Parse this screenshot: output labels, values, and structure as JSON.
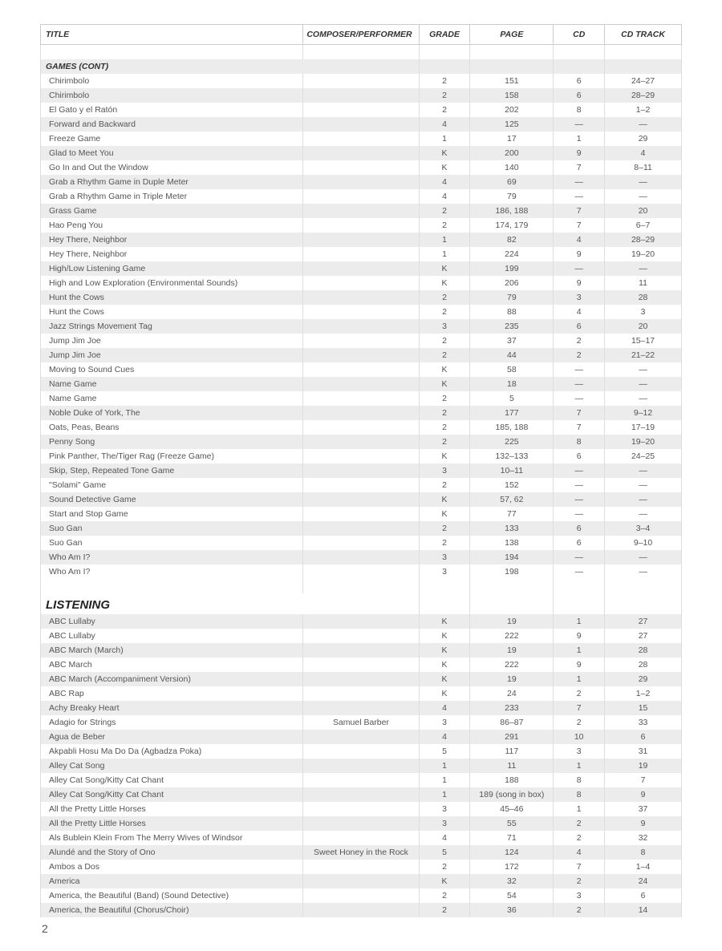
{
  "headers": {
    "title": "TITLE",
    "composer": "COMPOSER/PERFORMER",
    "grade": "GRADE",
    "page": "PAGE",
    "cd": "CD",
    "track": "CD TRACK"
  },
  "pageNumber": "2",
  "rows": [
    {
      "type": "blank"
    },
    {
      "type": "section",
      "label": "GAMES (CONT)",
      "zebra": true
    },
    {
      "type": "data",
      "title": "Chirimbolo",
      "composer": "",
      "grade": "2",
      "page": "151",
      "cd": "6",
      "track": "24–27"
    },
    {
      "type": "data",
      "title": "Chirimbolo",
      "composer": "",
      "grade": "2",
      "page": "158",
      "cd": "6",
      "track": "28–29",
      "zebra": true
    },
    {
      "type": "data",
      "title": "El Gato y el Ratón",
      "composer": "",
      "grade": "2",
      "page": "202",
      "cd": "8",
      "track": "1–2"
    },
    {
      "type": "data",
      "title": "Forward and Backward",
      "composer": "",
      "grade": "4",
      "page": "125",
      "cd": "—",
      "track": "—",
      "zebra": true
    },
    {
      "type": "data",
      "title": "Freeze Game",
      "composer": "",
      "grade": "1",
      "page": "17",
      "cd": "1",
      "track": "29"
    },
    {
      "type": "data",
      "title": "Glad to Meet You",
      "composer": "",
      "grade": "K",
      "page": "200",
      "cd": "9",
      "track": "4",
      "zebra": true
    },
    {
      "type": "data",
      "title": "Go In and Out the Window",
      "composer": "",
      "grade": "K",
      "page": "140",
      "cd": "7",
      "track": "8–11"
    },
    {
      "type": "data",
      "title": "Grab a Rhythm Game in Duple Meter",
      "composer": "",
      "grade": "4",
      "page": "69",
      "cd": "—",
      "track": "—",
      "zebra": true
    },
    {
      "type": "data",
      "title": "Grab a Rhythm Game in Triple Meter",
      "composer": "",
      "grade": "4",
      "page": "79",
      "cd": "—",
      "track": "—"
    },
    {
      "type": "data",
      "title": "Grass Game",
      "composer": "",
      "grade": "2",
      "page": "186, 188",
      "cd": "7",
      "track": "20",
      "zebra": true
    },
    {
      "type": "data",
      "title": "Hao Peng You",
      "composer": "",
      "grade": "2",
      "page": "174, 179",
      "cd": "7",
      "track": "6–7"
    },
    {
      "type": "data",
      "title": "Hey There, Neighbor",
      "composer": "",
      "grade": "1",
      "page": "82",
      "cd": "4",
      "track": "28–29",
      "zebra": true
    },
    {
      "type": "data",
      "title": "Hey There, Neighbor",
      "composer": "",
      "grade": "1",
      "page": "224",
      "cd": "9",
      "track": "19–20"
    },
    {
      "type": "data",
      "title": "High/Low Listening Game",
      "composer": "",
      "grade": "K",
      "page": "199",
      "cd": "—",
      "track": "—",
      "zebra": true
    },
    {
      "type": "data",
      "title": "High and Low Exploration (Environmental Sounds)",
      "composer": "",
      "grade": "K",
      "page": "206",
      "cd": "9",
      "track": "11"
    },
    {
      "type": "data",
      "title": "Hunt the Cows",
      "composer": "",
      "grade": "2",
      "page": "79",
      "cd": "3",
      "track": "28",
      "zebra": true
    },
    {
      "type": "data",
      "title": "Hunt the Cows",
      "composer": "",
      "grade": "2",
      "page": "88",
      "cd": "4",
      "track": "3"
    },
    {
      "type": "data",
      "title": "Jazz Strings Movement Tag",
      "composer": "",
      "grade": "3",
      "page": "235",
      "cd": "6",
      "track": "20",
      "zebra": true
    },
    {
      "type": "data",
      "title": "Jump Jim Joe",
      "composer": "",
      "grade": "2",
      "page": "37",
      "cd": "2",
      "track": "15–17"
    },
    {
      "type": "data",
      "title": "Jump Jim Joe",
      "composer": "",
      "grade": "2",
      "page": "44",
      "cd": "2",
      "track": "21–22",
      "zebra": true
    },
    {
      "type": "data",
      "title": "Moving to Sound Cues",
      "composer": "",
      "grade": "K",
      "page": "58",
      "cd": "—",
      "track": "—"
    },
    {
      "type": "data",
      "title": "Name Game",
      "composer": "",
      "grade": "K",
      "page": "18",
      "cd": "—",
      "track": "—",
      "zebra": true
    },
    {
      "type": "data",
      "title": "Name Game",
      "composer": "",
      "grade": "2",
      "page": "5",
      "cd": "—",
      "track": "—"
    },
    {
      "type": "data",
      "title": "Noble Duke of York, The",
      "composer": "",
      "grade": "2",
      "page": "177",
      "cd": "7",
      "track": "9–12",
      "zebra": true
    },
    {
      "type": "data",
      "title": "Oats, Peas, Beans",
      "composer": "",
      "grade": "2",
      "page": "185, 188",
      "cd": "7",
      "track": "17–19"
    },
    {
      "type": "data",
      "title": "Penny Song",
      "composer": "",
      "grade": "2",
      "page": "225",
      "cd": "8",
      "track": "19–20",
      "zebra": true
    },
    {
      "type": "data",
      "title": "Pink Panther, The/Tiger Rag (Freeze Game)",
      "composer": "",
      "grade": "K",
      "page": "132–133",
      "cd": "6",
      "track": "24–25"
    },
    {
      "type": "data",
      "title": "Skip, Step, Repeated Tone Game",
      "composer": "",
      "grade": "3",
      "page": "10–11",
      "cd": "—",
      "track": "—",
      "zebra": true
    },
    {
      "type": "data",
      "title": "\"Solami\" Game",
      "composer": "",
      "grade": "2",
      "page": "152",
      "cd": "—",
      "track": "—"
    },
    {
      "type": "data",
      "title": "Sound Detective Game",
      "composer": "",
      "grade": "K",
      "page": "57, 62",
      "cd": "—",
      "track": "—",
      "zebra": true
    },
    {
      "type": "data",
      "title": "Start and Stop Game",
      "composer": "",
      "grade": "K",
      "page": "77",
      "cd": "—",
      "track": "—"
    },
    {
      "type": "data",
      "title": "Suo Gan",
      "composer": "",
      "grade": "2",
      "page": "133",
      "cd": "6",
      "track": "3–4",
      "zebra": true
    },
    {
      "type": "data",
      "title": "Suo Gan",
      "composer": "",
      "grade": "2",
      "page": "138",
      "cd": "6",
      "track": "9–10"
    },
    {
      "type": "data",
      "title": "Who Am I?",
      "composer": "",
      "grade": "3",
      "page": "194",
      "cd": "—",
      "track": "—",
      "zebra": true
    },
    {
      "type": "data",
      "title": "Who Am I?",
      "composer": "",
      "grade": "3",
      "page": "198",
      "cd": "—",
      "track": "—"
    },
    {
      "type": "blank"
    },
    {
      "type": "section-major",
      "label": "LISTENING"
    },
    {
      "type": "data",
      "title": "ABC Lullaby",
      "composer": "",
      "grade": "K",
      "page": "19",
      "cd": "1",
      "track": "27",
      "zebra": true
    },
    {
      "type": "data",
      "title": "ABC Lullaby",
      "composer": "",
      "grade": "K",
      "page": "222",
      "cd": "9",
      "track": "27"
    },
    {
      "type": "data",
      "title": "ABC March (March)",
      "composer": "",
      "grade": "K",
      "page": "19",
      "cd": "1",
      "track": "28",
      "zebra": true
    },
    {
      "type": "data",
      "title": "ABC March",
      "composer": "",
      "grade": "K",
      "page": "222",
      "cd": "9",
      "track": "28"
    },
    {
      "type": "data",
      "title": "ABC March (Accompaniment Version)",
      "composer": "",
      "grade": "K",
      "page": "19",
      "cd": "1",
      "track": "29",
      "zebra": true
    },
    {
      "type": "data",
      "title": "ABC Rap",
      "composer": "",
      "grade": "K",
      "page": "24",
      "cd": "2",
      "track": "1–2"
    },
    {
      "type": "data",
      "title": "Achy Breaky Heart",
      "composer": "",
      "grade": "4",
      "page": "233",
      "cd": "7",
      "track": "15",
      "zebra": true
    },
    {
      "type": "data",
      "title": "Adagio for Strings",
      "composer": "Samuel Barber",
      "grade": "3",
      "page": "86–87",
      "cd": "2",
      "track": "33"
    },
    {
      "type": "data",
      "title": "Agua de Beber",
      "composer": "",
      "grade": "4",
      "page": "291",
      "cd": "10",
      "track": "6",
      "zebra": true
    },
    {
      "type": "data",
      "title": "Akpabli Hosu Ma Do Da (Agbadza Poka)",
      "composer": "",
      "grade": "5",
      "page": "117",
      "cd": "3",
      "track": "31"
    },
    {
      "type": "data",
      "title": "Alley Cat Song",
      "composer": "",
      "grade": "1",
      "page": "11",
      "cd": "1",
      "track": "19",
      "zebra": true
    },
    {
      "type": "data",
      "title": "Alley Cat Song/Kitty Cat Chant",
      "composer": "",
      "grade": "1",
      "page": "188",
      "cd": "8",
      "track": "7"
    },
    {
      "type": "data",
      "title": "Alley Cat Song/Kitty Cat Chant",
      "composer": "",
      "grade": "1",
      "page": "189 (song in box)",
      "cd": "8",
      "track": "9",
      "zebra": true
    },
    {
      "type": "data",
      "title": "All the Pretty Little Horses",
      "composer": "",
      "grade": "3",
      "page": "45–46",
      "cd": "1",
      "track": "37"
    },
    {
      "type": "data",
      "title": "All the Pretty Little Horses",
      "composer": "",
      "grade": "3",
      "page": "55",
      "cd": "2",
      "track": "9",
      "zebra": true
    },
    {
      "type": "data",
      "title": "Als Bublein Klein From The Merry Wives of Windsor",
      "composer": "",
      "grade": "4",
      "page": "71",
      "cd": "2",
      "track": "32"
    },
    {
      "type": "data",
      "title": "Alundé and the Story of Ono",
      "composer": "Sweet Honey in the Rock",
      "grade": "5",
      "page": "124",
      "cd": "4",
      "track": "8",
      "zebra": true
    },
    {
      "type": "data",
      "title": "Ambos a Dos",
      "composer": "",
      "grade": "2",
      "page": "172",
      "cd": "7",
      "track": "1–4"
    },
    {
      "type": "data",
      "title": "America",
      "composer": "",
      "grade": "K",
      "page": "32",
      "cd": "2",
      "track": "24",
      "zebra": true
    },
    {
      "type": "data",
      "title": "America, the Beautiful (Band) (Sound Detective)",
      "composer": "",
      "grade": "2",
      "page": "54",
      "cd": "3",
      "track": "6"
    },
    {
      "type": "data",
      "title": "America, the Beautiful (Chorus/Choir)",
      "composer": "",
      "grade": "2",
      "page": "36",
      "cd": "2",
      "track": "14",
      "zebra": true
    }
  ]
}
